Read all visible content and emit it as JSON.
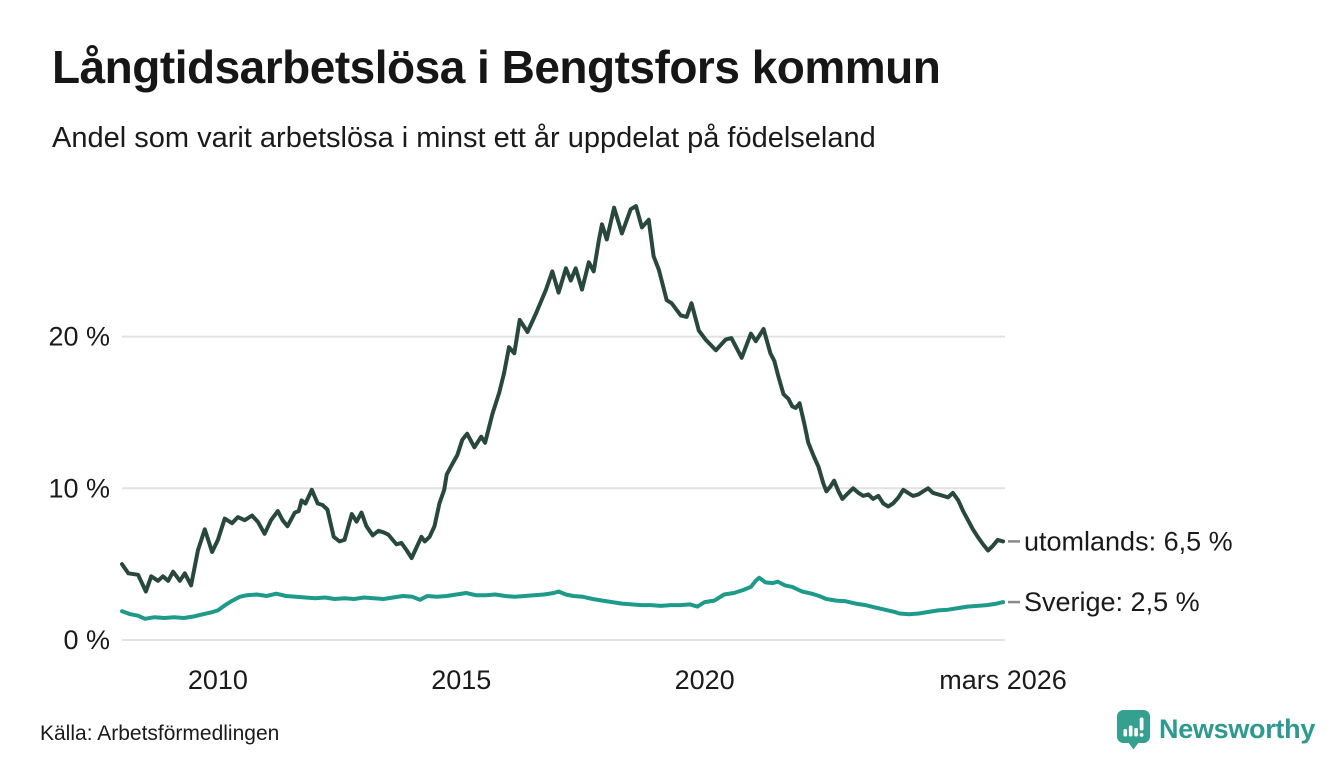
{
  "header": {
    "title": "Långtidsarbetslösa i Bengtsfors kommun",
    "subtitle": "Andel som varit arbetslösa i minst ett år uppdelat på födelseland"
  },
  "footer": {
    "source": "Källa: Arbetsförmedlingen",
    "logo_text": "Newsworthy"
  },
  "colors": {
    "utomlands_line": "#28483E",
    "sverige_line": "#1E9A8B",
    "grid": "#E2E2E2",
    "text": "#1A1A1A",
    "tick_dash": "#8A8A8A",
    "logo_teal": "#35A08F"
  },
  "chart_data": {
    "type": "line",
    "title": "Långtidsarbetslösa i Bengtsfors kommun",
    "subtitle": "Andel som varit arbetslösa i minst ett år uppdelat på födelseland",
    "unit": "%",
    "grid": true,
    "legend_position": "end-of-line-labels",
    "x_axis": {
      "range": [
        2008.03,
        2026.17
      ],
      "ticks": [
        2010,
        2015,
        2020,
        2026.13
      ],
      "tick_labels": [
        "2010",
        "2015",
        "2020",
        "mars 2026"
      ]
    },
    "y_axis": {
      "range": [
        0,
        30
      ],
      "ticks": [
        0,
        10,
        20
      ],
      "tick_labels": [
        "0 %",
        "10 %",
        "20 %"
      ]
    },
    "series": [
      {
        "name": "utomlands",
        "end_label": "utomlands: 6,5 %",
        "last_value": 6.5,
        "color": "#28483E",
        "points": [
          [
            2008.03,
            5.0
          ],
          [
            2008.16,
            4.4
          ],
          [
            2008.36,
            4.3
          ],
          [
            2008.52,
            3.2
          ],
          [
            2008.63,
            4.2
          ],
          [
            2008.77,
            3.9
          ],
          [
            2008.87,
            4.2
          ],
          [
            2008.98,
            3.9
          ],
          [
            2009.08,
            4.5
          ],
          [
            2009.22,
            3.9
          ],
          [
            2009.32,
            4.4
          ],
          [
            2009.45,
            3.6
          ],
          [
            2009.59,
            5.9
          ],
          [
            2009.73,
            7.3
          ],
          [
            2009.88,
            5.8
          ],
          [
            2010.0,
            6.6
          ],
          [
            2010.14,
            8.0
          ],
          [
            2010.29,
            7.7
          ],
          [
            2010.41,
            8.1
          ],
          [
            2010.55,
            7.9
          ],
          [
            2010.7,
            8.2
          ],
          [
            2010.82,
            7.8
          ],
          [
            2010.96,
            7.0
          ],
          [
            2011.09,
            7.9
          ],
          [
            2011.23,
            8.5
          ],
          [
            2011.33,
            7.9
          ],
          [
            2011.43,
            7.5
          ],
          [
            2011.58,
            8.4
          ],
          [
            2011.66,
            8.5
          ],
          [
            2011.72,
            9.2
          ],
          [
            2011.8,
            9.0
          ],
          [
            2011.93,
            9.9
          ],
          [
            2012.05,
            9.0
          ],
          [
            2012.15,
            8.9
          ],
          [
            2012.25,
            8.6
          ],
          [
            2012.38,
            6.8
          ],
          [
            2012.5,
            6.5
          ],
          [
            2012.6,
            6.6
          ],
          [
            2012.75,
            8.3
          ],
          [
            2012.85,
            7.8
          ],
          [
            2012.95,
            8.4
          ],
          [
            2013.05,
            7.5
          ],
          [
            2013.18,
            6.9
          ],
          [
            2013.3,
            7.2
          ],
          [
            2013.4,
            7.1
          ],
          [
            2013.5,
            6.95
          ],
          [
            2013.67,
            6.3
          ],
          [
            2013.77,
            6.4
          ],
          [
            2013.88,
            5.9
          ],
          [
            2013.98,
            5.4
          ],
          [
            2014.08,
            6.1
          ],
          [
            2014.18,
            6.8
          ],
          [
            2014.25,
            6.5
          ],
          [
            2014.35,
            6.8
          ],
          [
            2014.45,
            7.5
          ],
          [
            2014.55,
            9.0
          ],
          [
            2014.65,
            9.9
          ],
          [
            2014.7,
            10.9
          ],
          [
            2014.8,
            11.5
          ],
          [
            2014.92,
            12.2
          ],
          [
            2015.02,
            13.2
          ],
          [
            2015.12,
            13.6
          ],
          [
            2015.27,
            12.7
          ],
          [
            2015.41,
            13.4
          ],
          [
            2015.49,
            13.0
          ],
          [
            2015.64,
            14.9
          ],
          [
            2015.78,
            16.3
          ],
          [
            2015.88,
            17.6
          ],
          [
            2015.98,
            19.3
          ],
          [
            2016.09,
            18.9
          ],
          [
            2016.2,
            21.1
          ],
          [
            2016.36,
            20.3
          ],
          [
            2016.53,
            21.5
          ],
          [
            2016.74,
            23.1
          ],
          [
            2016.87,
            24.3
          ],
          [
            2017.0,
            22.9
          ],
          [
            2017.15,
            24.5
          ],
          [
            2017.25,
            23.7
          ],
          [
            2017.35,
            24.5
          ],
          [
            2017.48,
            23.1
          ],
          [
            2017.62,
            24.9
          ],
          [
            2017.72,
            24.3
          ],
          [
            2017.83,
            26.4
          ],
          [
            2017.89,
            27.4
          ],
          [
            2017.99,
            26.4
          ],
          [
            2018.14,
            28.5
          ],
          [
            2018.3,
            26.8
          ],
          [
            2018.48,
            28.4
          ],
          [
            2018.59,
            28.6
          ],
          [
            2018.71,
            27.2
          ],
          [
            2018.85,
            27.7
          ],
          [
            2018.95,
            25.3
          ],
          [
            2019.06,
            24.4
          ],
          [
            2019.22,
            22.4
          ],
          [
            2019.32,
            22.2
          ],
          [
            2019.51,
            21.4
          ],
          [
            2019.63,
            21.3
          ],
          [
            2019.73,
            22.2
          ],
          [
            2019.88,
            20.4
          ],
          [
            2020.02,
            19.8
          ],
          [
            2020.23,
            19.1
          ],
          [
            2020.43,
            19.8
          ],
          [
            2020.55,
            19.9
          ],
          [
            2020.76,
            18.6
          ],
          [
            2020.95,
            20.2
          ],
          [
            2021.05,
            19.7
          ],
          [
            2021.21,
            20.5
          ],
          [
            2021.35,
            18.9
          ],
          [
            2021.43,
            18.4
          ],
          [
            2021.52,
            17.3
          ],
          [
            2021.62,
            16.2
          ],
          [
            2021.72,
            15.9
          ],
          [
            2021.8,
            15.4
          ],
          [
            2021.87,
            15.3
          ],
          [
            2021.95,
            15.6
          ],
          [
            2022.05,
            14.2
          ],
          [
            2022.13,
            13.0
          ],
          [
            2022.23,
            12.2
          ],
          [
            2022.34,
            11.4
          ],
          [
            2022.44,
            10.3
          ],
          [
            2022.5,
            9.8
          ],
          [
            2022.58,
            10.1
          ],
          [
            2022.66,
            10.5
          ],
          [
            2022.75,
            9.8
          ],
          [
            2022.83,
            9.3
          ],
          [
            2022.95,
            9.7
          ],
          [
            2023.05,
            10.0
          ],
          [
            2023.16,
            9.7
          ],
          [
            2023.26,
            9.5
          ],
          [
            2023.36,
            9.6
          ],
          [
            2023.46,
            9.3
          ],
          [
            2023.57,
            9.5
          ],
          [
            2023.67,
            9.0
          ],
          [
            2023.77,
            8.8
          ],
          [
            2023.87,
            9.0
          ],
          [
            2023.98,
            9.4
          ],
          [
            2024.08,
            9.9
          ],
          [
            2024.18,
            9.7
          ],
          [
            2024.28,
            9.5
          ],
          [
            2024.39,
            9.6
          ],
          [
            2024.49,
            9.8
          ],
          [
            2024.59,
            10.0
          ],
          [
            2024.69,
            9.7
          ],
          [
            2024.8,
            9.6
          ],
          [
            2024.9,
            9.5
          ],
          [
            2025.0,
            9.4
          ],
          [
            2025.1,
            9.7
          ],
          [
            2025.21,
            9.2
          ],
          [
            2025.31,
            8.5
          ],
          [
            2025.41,
            7.9
          ],
          [
            2025.51,
            7.3
          ],
          [
            2025.61,
            6.8
          ],
          [
            2025.72,
            6.3
          ],
          [
            2025.82,
            5.9
          ],
          [
            2025.92,
            6.2
          ],
          [
            2026.02,
            6.6
          ],
          [
            2026.13,
            6.5
          ]
        ]
      },
      {
        "name": "Sverige",
        "end_label": "Sverige: 2,5 %",
        "last_value": 2.5,
        "color": "#1E9A8B",
        "points": [
          [
            2008.03,
            1.9
          ],
          [
            2008.2,
            1.7
          ],
          [
            2008.36,
            1.6
          ],
          [
            2008.5,
            1.4
          ],
          [
            2008.7,
            1.5
          ],
          [
            2008.9,
            1.45
          ],
          [
            2009.1,
            1.5
          ],
          [
            2009.3,
            1.45
          ],
          [
            2009.5,
            1.55
          ],
          [
            2009.7,
            1.7
          ],
          [
            2009.9,
            1.85
          ],
          [
            2010.0,
            1.95
          ],
          [
            2010.15,
            2.3
          ],
          [
            2010.3,
            2.6
          ],
          [
            2010.45,
            2.85
          ],
          [
            2010.6,
            2.95
          ],
          [
            2010.8,
            3.0
          ],
          [
            2011.0,
            2.9
          ],
          [
            2011.2,
            3.05
          ],
          [
            2011.4,
            2.9
          ],
          [
            2011.6,
            2.85
          ],
          [
            2011.8,
            2.8
          ],
          [
            2012.0,
            2.75
          ],
          [
            2012.2,
            2.8
          ],
          [
            2012.4,
            2.7
          ],
          [
            2012.6,
            2.75
          ],
          [
            2012.8,
            2.7
          ],
          [
            2013.0,
            2.8
          ],
          [
            2013.2,
            2.75
          ],
          [
            2013.4,
            2.7
          ],
          [
            2013.6,
            2.8
          ],
          [
            2013.8,
            2.9
          ],
          [
            2014.0,
            2.85
          ],
          [
            2014.15,
            2.65
          ],
          [
            2014.3,
            2.9
          ],
          [
            2014.5,
            2.85
          ],
          [
            2014.7,
            2.9
          ],
          [
            2014.9,
            3.0
          ],
          [
            2015.1,
            3.1
          ],
          [
            2015.3,
            2.95
          ],
          [
            2015.5,
            2.95
          ],
          [
            2015.7,
            3.0
          ],
          [
            2015.9,
            2.9
          ],
          [
            2016.1,
            2.85
          ],
          [
            2016.3,
            2.9
          ],
          [
            2016.5,
            2.95
          ],
          [
            2016.7,
            3.0
          ],
          [
            2016.9,
            3.1
          ],
          [
            2017.0,
            3.2
          ],
          [
            2017.15,
            3.0
          ],
          [
            2017.3,
            2.9
          ],
          [
            2017.5,
            2.85
          ],
          [
            2017.7,
            2.7
          ],
          [
            2017.9,
            2.6
          ],
          [
            2018.1,
            2.5
          ],
          [
            2018.3,
            2.4
          ],
          [
            2018.5,
            2.35
          ],
          [
            2018.7,
            2.3
          ],
          [
            2018.9,
            2.3
          ],
          [
            2019.1,
            2.25
          ],
          [
            2019.3,
            2.3
          ],
          [
            2019.5,
            2.3
          ],
          [
            2019.7,
            2.35
          ],
          [
            2019.85,
            2.2
          ],
          [
            2020.0,
            2.5
          ],
          [
            2020.2,
            2.6
          ],
          [
            2020.4,
            3.0
          ],
          [
            2020.6,
            3.1
          ],
          [
            2020.8,
            3.3
          ],
          [
            2020.95,
            3.5
          ],
          [
            2021.05,
            3.9
          ],
          [
            2021.12,
            4.1
          ],
          [
            2021.25,
            3.8
          ],
          [
            2021.4,
            3.75
          ],
          [
            2021.5,
            3.85
          ],
          [
            2021.65,
            3.6
          ],
          [
            2021.8,
            3.5
          ],
          [
            2022.0,
            3.2
          ],
          [
            2022.2,
            3.05
          ],
          [
            2022.35,
            2.9
          ],
          [
            2022.5,
            2.7
          ],
          [
            2022.7,
            2.6
          ],
          [
            2022.9,
            2.55
          ],
          [
            2023.1,
            2.4
          ],
          [
            2023.3,
            2.3
          ],
          [
            2023.5,
            2.15
          ],
          [
            2023.7,
            2.0
          ],
          [
            2023.9,
            1.85
          ],
          [
            2024.0,
            1.75
          ],
          [
            2024.2,
            1.7
          ],
          [
            2024.4,
            1.75
          ],
          [
            2024.6,
            1.85
          ],
          [
            2024.8,
            1.95
          ],
          [
            2025.0,
            2.0
          ],
          [
            2025.2,
            2.1
          ],
          [
            2025.4,
            2.2
          ],
          [
            2025.6,
            2.25
          ],
          [
            2025.8,
            2.3
          ],
          [
            2026.0,
            2.4
          ],
          [
            2026.13,
            2.5
          ]
        ]
      }
    ]
  }
}
